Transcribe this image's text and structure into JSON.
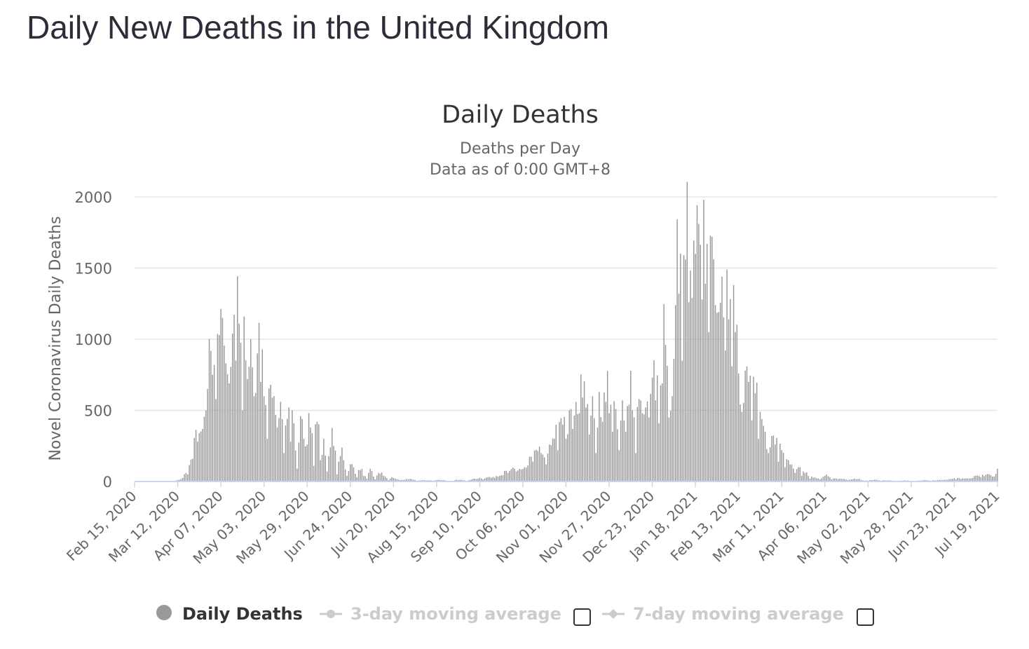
{
  "page": {
    "title": "Daily New Deaths in the United Kingdom"
  },
  "colors": {
    "bar": "#999999",
    "grid": "#e6e6e6",
    "baseline": "#ccd6eb",
    "legend_off": "#cccccc"
  },
  "legend": {
    "items": [
      {
        "label": "Daily Deaths",
        "active": true,
        "marker": "circle"
      },
      {
        "label": "3-day moving average",
        "active": false,
        "marker": "line-circle",
        "checkbox": true
      },
      {
        "label": "7-day moving average",
        "active": false,
        "marker": "line-diamond",
        "checkbox": true
      }
    ]
  },
  "chart_data": {
    "type": "bar",
    "title": "Daily Deaths",
    "subtitle": [
      "Deaths per Day",
      "Data as of 0:00 GMT+8"
    ],
    "xlabel": "",
    "ylabel": "Novel Coronavirus Daily Deaths",
    "ylim": [
      0,
      2000
    ],
    "yticks": [
      0,
      500,
      1000,
      1500,
      2000
    ],
    "x_start": "Feb 15, 2020",
    "x_end": "Jul 19, 2021",
    "day_count": 521,
    "xticks": [
      "Feb 15, 2020",
      "Mar 12, 2020",
      "Apr 07, 2020",
      "May 03, 2020",
      "May 29, 2020",
      "Jun 24, 2020",
      "Jul 20, 2020",
      "Aug 15, 2020",
      "Sep 10, 2020",
      "Oct 06, 2020",
      "Nov 01, 2020",
      "Nov 27, 2020",
      "Dec 23, 2020",
      "Jan 18, 2021",
      "Feb 13, 2021",
      "Mar 11, 2021",
      "Apr 06, 2021",
      "May 02, 2021",
      "May 28, 2021",
      "Jun 23, 2021",
      "Jul 19, 2021"
    ],
    "grid": true,
    "series": [
      {
        "name": "Daily Deaths",
        "color": "#999999",
        "anchors": [
          [
            0,
            0
          ],
          [
            20,
            0
          ],
          [
            22,
            2
          ],
          [
            26,
            10
          ],
          [
            29,
            25
          ],
          [
            32,
            50
          ],
          [
            35,
            160
          ],
          [
            38,
            280
          ],
          [
            41,
            370
          ],
          [
            44,
            650
          ],
          [
            47,
            750
          ],
          [
            49,
            580
          ],
          [
            51,
            1030
          ],
          [
            53,
            1150
          ],
          [
            55,
            830
          ],
          [
            57,
            690
          ],
          [
            59,
            1040
          ],
          [
            61,
            850
          ],
          [
            63,
            1110
          ],
          [
            65,
            500
          ],
          [
            66,
            1160
          ],
          [
            68,
            720
          ],
          [
            70,
            1000
          ],
          [
            72,
            600
          ],
          [
            74,
            900
          ],
          [
            76,
            700
          ],
          [
            78,
            600
          ],
          [
            80,
            300
          ],
          [
            82,
            680
          ],
          [
            84,
            600
          ],
          [
            86,
            380
          ],
          [
            88,
            560
          ],
          [
            90,
            200
          ],
          [
            92,
            440
          ],
          [
            94,
            280
          ],
          [
            96,
            410
          ],
          [
            98,
            90
          ],
          [
            100,
            460
          ],
          [
            102,
            300
          ],
          [
            104,
            260
          ],
          [
            106,
            380
          ],
          [
            108,
            110
          ],
          [
            110,
            420
          ],
          [
            112,
            150
          ],
          [
            114,
            300
          ],
          [
            116,
            70
          ],
          [
            118,
            240
          ],
          [
            120,
            250
          ],
          [
            122,
            50
          ],
          [
            124,
            180
          ],
          [
            126,
            150
          ],
          [
            128,
            40
          ],
          [
            130,
            120
          ],
          [
            132,
            100
          ],
          [
            134,
            30
          ],
          [
            136,
            80
          ],
          [
            138,
            40
          ],
          [
            140,
            20
          ],
          [
            142,
            90
          ],
          [
            145,
            15
          ],
          [
            147,
            60
          ],
          [
            150,
            40
          ],
          [
            153,
            10
          ],
          [
            156,
            25
          ],
          [
            160,
            10
          ],
          [
            165,
            15
          ],
          [
            170,
            5
          ],
          [
            175,
            10
          ],
          [
            180,
            5
          ],
          [
            185,
            10
          ],
          [
            190,
            3
          ],
          [
            195,
            10
          ],
          [
            200,
            5
          ],
          [
            205,
            20
          ],
          [
            210,
            15
          ],
          [
            215,
            25
          ],
          [
            220,
            40
          ],
          [
            225,
            60
          ],
          [
            230,
            70
          ],
          [
            235,
            100
          ],
          [
            240,
            140
          ],
          [
            245,
            200
          ],
          [
            248,
            120
          ],
          [
            250,
            260
          ],
          [
            253,
            300
          ],
          [
            255,
            220
          ],
          [
            258,
            400
          ],
          [
            260,
            300
          ],
          [
            262,
            500
          ],
          [
            264,
            370
          ],
          [
            266,
            560
          ],
          [
            268,
            480
          ],
          [
            270,
            590
          ],
          [
            272,
            520
          ],
          [
            274,
            330
          ],
          [
            276,
            600
          ],
          [
            278,
            200
          ],
          [
            280,
            630
          ],
          [
            282,
            420
          ],
          [
            284,
            560
          ],
          [
            286,
            480
          ],
          [
            288,
            350
          ],
          [
            290,
            510
          ],
          [
            292,
            220
          ],
          [
            294,
            570
          ],
          [
            296,
            350
          ],
          [
            298,
            540
          ],
          [
            300,
            500
          ],
          [
            302,
            200
          ],
          [
            304,
            580
          ],
          [
            306,
            480
          ],
          [
            308,
            520
          ],
          [
            310,
            450
          ],
          [
            312,
            730
          ],
          [
            314,
            570
          ],
          [
            316,
            410
          ],
          [
            318,
            690
          ],
          [
            320,
            960
          ],
          [
            322,
            450
          ],
          [
            324,
            600
          ],
          [
            326,
            1240
          ],
          [
            328,
            1320
          ],
          [
            330,
            850
          ],
          [
            332,
            1560
          ],
          [
            334,
            1260
          ],
          [
            336,
            1290
          ],
          [
            338,
            1600
          ],
          [
            340,
            1810
          ],
          [
            342,
            1280
          ],
          [
            344,
            1390
          ],
          [
            346,
            1050
          ],
          [
            348,
            1720
          ],
          [
            350,
            1240
          ],
          [
            352,
            1190
          ],
          [
            354,
            1440
          ],
          [
            356,
            920
          ],
          [
            358,
            1140
          ],
          [
            360,
            810
          ],
          [
            362,
            1050
          ],
          [
            364,
            760
          ],
          [
            366,
            490
          ],
          [
            368,
            780
          ],
          [
            370,
            700
          ],
          [
            372,
            430
          ],
          [
            374,
            620
          ],
          [
            376,
            300
          ],
          [
            378,
            440
          ],
          [
            380,
            350
          ],
          [
            382,
            200
          ],
          [
            384,
            320
          ],
          [
            386,
            260
          ],
          [
            388,
            140
          ],
          [
            390,
            220
          ],
          [
            392,
            100
          ],
          [
            394,
            150
          ],
          [
            396,
            120
          ],
          [
            398,
            60
          ],
          [
            400,
            100
          ],
          [
            402,
            40
          ],
          [
            404,
            60
          ],
          [
            407,
            20
          ],
          [
            410,
            30
          ],
          [
            413,
            15
          ],
          [
            416,
            40
          ],
          [
            420,
            15
          ],
          [
            425,
            20
          ],
          [
            430,
            10
          ],
          [
            435,
            15
          ],
          [
            440,
            5
          ],
          [
            445,
            10
          ],
          [
            450,
            5
          ],
          [
            455,
            8
          ],
          [
            460,
            3
          ],
          [
            465,
            6
          ],
          [
            470,
            3
          ],
          [
            475,
            8
          ],
          [
            480,
            5
          ],
          [
            485,
            10
          ],
          [
            490,
            12
          ],
          [
            495,
            15
          ],
          [
            500,
            20
          ],
          [
            505,
            25
          ],
          [
            510,
            30
          ],
          [
            515,
            50
          ],
          [
            518,
            35
          ],
          [
            520,
            90
          ]
        ]
      }
    ]
  }
}
